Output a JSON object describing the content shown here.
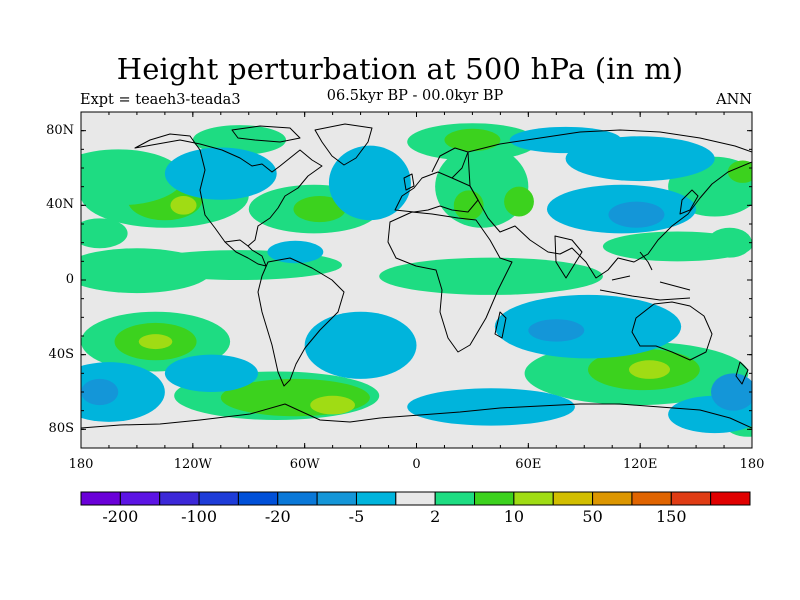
{
  "map": {
    "title": "Height perturbation at 500 hPa (in m)",
    "experiment": "Expt = teaeh3-teada3",
    "period": "06.5kyr BP - 00.0kyr BP",
    "season": "ANN",
    "projection": "cylindrical equidistant",
    "variable": "500 hPa geopotential height difference",
    "units": "m",
    "lat_ticks": [
      {
        "label": "80N",
        "value": 80
      },
      {
        "label": "40N",
        "value": 40
      },
      {
        "label": "0",
        "value": 0
      },
      {
        "label": "40S",
        "value": -40
      },
      {
        "label": "80S",
        "value": -80
      }
    ],
    "lon_ticks": [
      {
        "label": "180",
        "value": -180
      },
      {
        "label": "120W",
        "value": -120
      },
      {
        "label": "60W",
        "value": -60
      },
      {
        "label": "0",
        "value": 0
      },
      {
        "label": "60E",
        "value": 60
      },
      {
        "label": "120E",
        "value": 120
      },
      {
        "label": "180",
        "value": 180
      }
    ],
    "lon_range": [
      -180,
      180
    ],
    "lat_range": [
      -90,
      90
    ]
  },
  "colorbar": {
    "colors": [
      "#6a00d8",
      "#5c14e4",
      "#3c28d8",
      "#1e3cd8",
      "#0050d8",
      "#0a78d8",
      "#1496d8",
      "#00b4dc",
      "#e8e8e8",
      "#1edc82",
      "#3cd21e",
      "#a0dc14",
      "#d2be00",
      "#dc9600",
      "#e06400",
      "#e03c14",
      "#e00000"
    ],
    "labels": [
      {
        "text": "-200",
        "boundary": 1
      },
      {
        "text": "-100",
        "boundary": 3
      },
      {
        "text": "-20",
        "boundary": 5
      },
      {
        "text": "-5",
        "boundary": 7
      },
      {
        "text": "2",
        "boundary": 9
      },
      {
        "text": "10",
        "boundary": 11
      },
      {
        "text": "50",
        "boundary": 13
      },
      {
        "text": "150",
        "boundary": 15
      }
    ]
  },
  "fields": [
    {
      "lon": -150,
      "lat": 5,
      "rx": 40,
      "ry": 12,
      "level": 9
    },
    {
      "lon": -95,
      "lat": 8,
      "rx": 55,
      "ry": 8,
      "level": 9
    },
    {
      "lon": 40,
      "lat": 2,
      "rx": 60,
      "ry": 10,
      "level": 9
    },
    {
      "lon": -135,
      "lat": 45,
      "rx": 45,
      "ry": 17,
      "level": 9
    },
    {
      "lon": -135,
      "lat": 43,
      "rx": 20,
      "ry": 11,
      "level": 10
    },
    {
      "lon": -125,
      "lat": 40,
      "rx": 7,
      "ry": 5,
      "level": 11
    },
    {
      "lon": -170,
      "lat": 25,
      "rx": 15,
      "ry": 8,
      "level": 9
    },
    {
      "lon": -160,
      "lat": 55,
      "rx": 35,
      "ry": 15,
      "level": 9
    },
    {
      "lon": -55,
      "lat": 38,
      "rx": 35,
      "ry": 13,
      "level": 9
    },
    {
      "lon": -52,
      "lat": 38,
      "rx": 14,
      "ry": 7,
      "level": 10
    },
    {
      "lon": 35,
      "lat": 50,
      "rx": 25,
      "ry": 22,
      "level": 9
    },
    {
      "lon": 28,
      "lat": 40,
      "rx": 8,
      "ry": 8,
      "level": 10
    },
    {
      "lon": 55,
      "lat": 42,
      "rx": 8,
      "ry": 8,
      "level": 10
    },
    {
      "lon": 30,
      "lat": 74,
      "rx": 35,
      "ry": 10,
      "level": 9
    },
    {
      "lon": 30,
      "lat": 75,
      "rx": 15,
      "ry": 6,
      "level": 10
    },
    {
      "lon": -95,
      "lat": 75,
      "rx": 25,
      "ry": 8,
      "level": 9
    },
    {
      "lon": 160,
      "lat": 50,
      "rx": 25,
      "ry": 16,
      "level": 9
    },
    {
      "lon": 175,
      "lat": 58,
      "rx": 8,
      "ry": 6,
      "level": 10
    },
    {
      "lon": 140,
      "lat": 18,
      "rx": 40,
      "ry": 8,
      "level": 9
    },
    {
      "lon": 168,
      "lat": 20,
      "rx": 12,
      "ry": 8,
      "level": 9
    },
    {
      "lon": -105,
      "lat": 57,
      "rx": 30,
      "ry": 14,
      "level": 7
    },
    {
      "lon": -25,
      "lat": 52,
      "rx": 22,
      "ry": 20,
      "level": 7
    },
    {
      "lon": -65,
      "lat": 15,
      "rx": 15,
      "ry": 6,
      "level": 7
    },
    {
      "lon": 110,
      "lat": 38,
      "rx": 40,
      "ry": 13,
      "level": 7
    },
    {
      "lon": 118,
      "lat": 35,
      "rx": 15,
      "ry": 7,
      "level": 6
    },
    {
      "lon": 120,
      "lat": 65,
      "rx": 40,
      "ry": 12,
      "level": 7
    },
    {
      "lon": 80,
      "lat": 75,
      "rx": 30,
      "ry": 7,
      "level": 7
    },
    {
      "lon": -140,
      "lat": -33,
      "rx": 40,
      "ry": 16,
      "level": 9
    },
    {
      "lon": -140,
      "lat": -33,
      "rx": 22,
      "ry": 10,
      "level": 10
    },
    {
      "lon": -140,
      "lat": -33,
      "rx": 9,
      "ry": 4,
      "level": 11
    },
    {
      "lon": -75,
      "lat": -62,
      "rx": 55,
      "ry": 13,
      "level": 9
    },
    {
      "lon": -65,
      "lat": -63,
      "rx": 40,
      "ry": 10,
      "level": 10
    },
    {
      "lon": -45,
      "lat": -67,
      "rx": 12,
      "ry": 5,
      "level": 11
    },
    {
      "lon": 118,
      "lat": -50,
      "rx": 60,
      "ry": 17,
      "level": 9
    },
    {
      "lon": 122,
      "lat": -48,
      "rx": 30,
      "ry": 11,
      "level": 10
    },
    {
      "lon": 125,
      "lat": -48,
      "rx": 11,
      "ry": 5,
      "level": 11
    },
    {
      "lon": 178,
      "lat": -78,
      "rx": 12,
      "ry": 6,
      "level": 9
    },
    {
      "lon": -30,
      "lat": -35,
      "rx": 30,
      "ry": 18,
      "level": 7
    },
    {
      "lon": 92,
      "lat": -25,
      "rx": 50,
      "ry": 17,
      "level": 7
    },
    {
      "lon": 75,
      "lat": -27,
      "rx": 15,
      "ry": 6,
      "level": 6
    },
    {
      "lon": -165,
      "lat": -60,
      "rx": 30,
      "ry": 16,
      "level": 7
    },
    {
      "lon": -170,
      "lat": -60,
      "rx": 10,
      "ry": 7,
      "level": 6
    },
    {
      "lon": -110,
      "lat": -50,
      "rx": 25,
      "ry": 10,
      "level": 7
    },
    {
      "lon": 40,
      "lat": -68,
      "rx": 45,
      "ry": 10,
      "level": 7
    },
    {
      "lon": 160,
      "lat": -72,
      "rx": 25,
      "ry": 10,
      "level": 7
    },
    {
      "lon": 170,
      "lat": -60,
      "rx": 12,
      "ry": 10,
      "level": 6
    }
  ]
}
